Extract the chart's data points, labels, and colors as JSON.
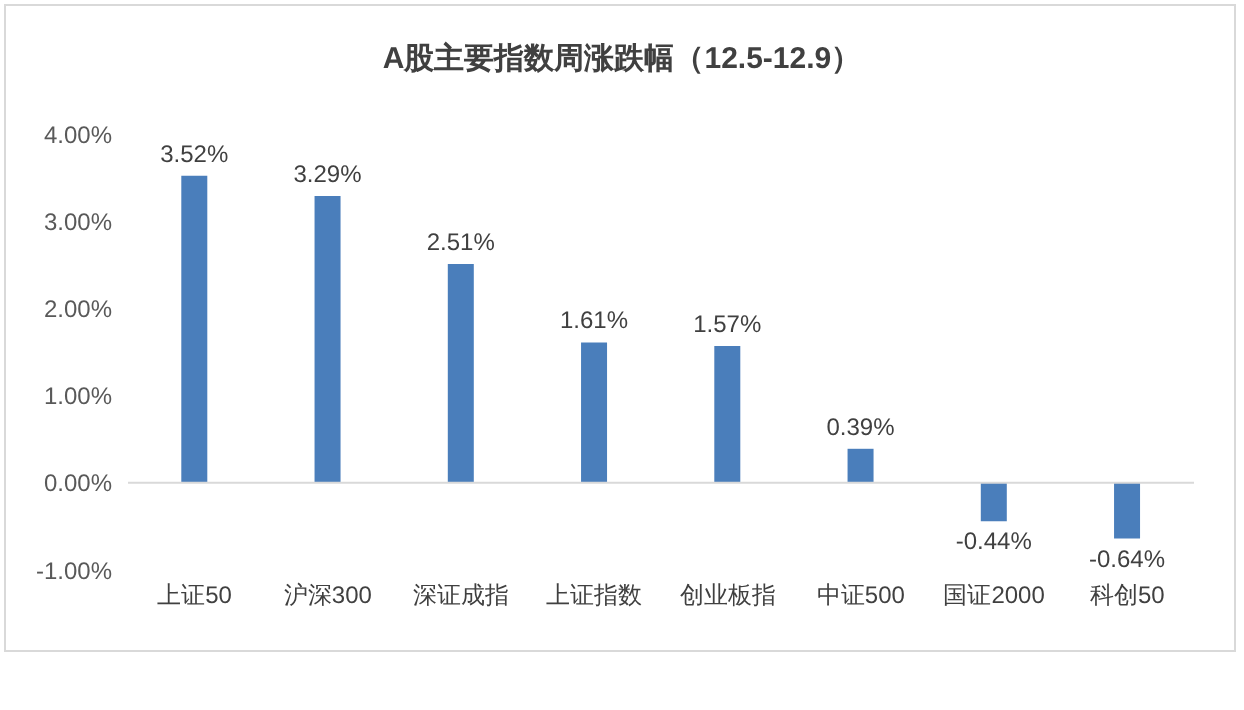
{
  "chart_data": {
    "type": "bar",
    "title": "A股主要指数周涨跌幅（12.5-12.9）",
    "categories": [
      "上证50",
      "沪深300",
      "深证成指",
      "上证指数",
      "创业板指",
      "中证500",
      "国证2000",
      "科创50"
    ],
    "values": [
      3.52,
      3.29,
      2.51,
      1.61,
      1.57,
      0.39,
      -0.44,
      -0.64
    ],
    "value_labels": [
      "3.52%",
      "3.29%",
      "2.51%",
      "1.61%",
      "1.57%",
      "0.39%",
      "-0.44%",
      "-0.64%"
    ],
    "color": "#4a7ebb",
    "ylim": [
      -1,
      4
    ],
    "yticks": [
      {
        "value": -1,
        "label": "-1.00%"
      },
      {
        "value": 0,
        "label": "0.00%"
      },
      {
        "value": 1,
        "label": "1.00%"
      },
      {
        "value": 2,
        "label": "2.00%"
      },
      {
        "value": 3,
        "label": "3.00%"
      },
      {
        "value": 4,
        "label": "4.00%"
      }
    ],
    "legend": false
  }
}
